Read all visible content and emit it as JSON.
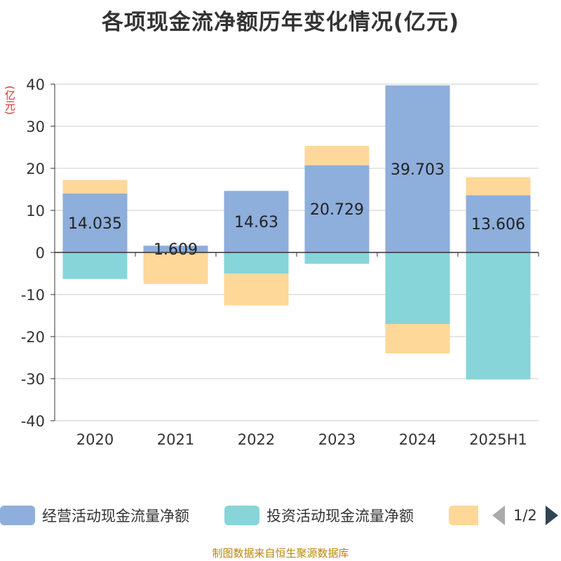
{
  "title": "各项现金流净额历年变化情况(亿元)",
  "unit_label": "(亿元)",
  "source": "制图数据来自恒生聚源数据库",
  "legend": {
    "items": [
      {
        "label": "经营活动现金流量净额",
        "color": "#8eaedb"
      },
      {
        "label": "投资活动现金流量净额",
        "color": "#87d5d8"
      },
      {
        "label": "",
        "color": "#fdd899"
      }
    ],
    "page": "1/2"
  },
  "chart_data": {
    "type": "bar",
    "stacked": true,
    "categories": [
      "2020",
      "2021",
      "2022",
      "2023",
      "2024",
      "2025H1"
    ],
    "ylim": [
      -40,
      40
    ],
    "yticks": [
      40,
      30,
      20,
      10,
      0,
      -10,
      -20,
      -30,
      -40
    ],
    "grid": true,
    "legend_position": "bottom",
    "series": [
      {
        "name": "经营活动现金流量净额",
        "color": "#8eaedb",
        "values": [
          14.035,
          1.609,
          14.63,
          20.729,
          39.703,
          13.606
        ],
        "labels": [
          "14.035",
          "1.609",
          "14.63",
          "20.729",
          "39.703",
          "13.606"
        ]
      },
      {
        "name": "投资活动现金流量净额",
        "color": "#87d5d8",
        "values": [
          -6.3,
          0,
          -5.0,
          -2.7,
          -17.0,
          -30.2
        ]
      },
      {
        "color": "#fdd899",
        "values": [
          3.2,
          -7.5,
          -7.6,
          4.6,
          -7.0,
          4.3
        ]
      }
    ]
  }
}
